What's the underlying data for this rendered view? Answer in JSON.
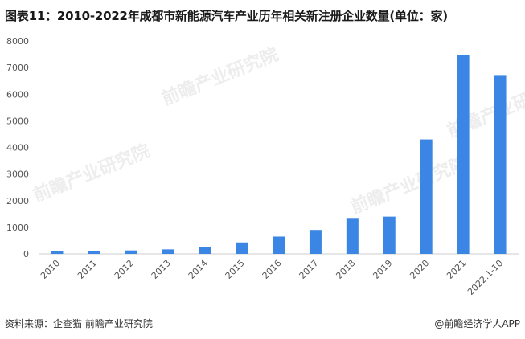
{
  "title": "图表11：2010-2022年成都市新能源汽车产业历年相关新注册企业数量(单位：家)",
  "source": "资料来源：企查猫 前瞻产业研究院",
  "credit": "@前瞻经济学人APP",
  "watermark": "前瞻产业研究院",
  "colors": {
    "bar": "#3b86e4",
    "axis": "#cccccc",
    "watermark": "#d9d9d9"
  },
  "chart_data": {
    "type": "bar",
    "title": "图表11：2010-2022年成都市新能源汽车产业历年相关新注册企业数量(单位：家)",
    "categories": [
      "2010",
      "2011",
      "2012",
      "2013",
      "2014",
      "2015",
      "2016",
      "2017",
      "2018",
      "2019",
      "2020",
      "2021",
      "2022.1-10"
    ],
    "values": [
      110,
      120,
      130,
      170,
      260,
      430,
      650,
      900,
      1350,
      1400,
      4300,
      7480,
      6720
    ],
    "yticks": [
      0,
      1000,
      2000,
      3000,
      4000,
      5000,
      6000,
      7000,
      8000
    ],
    "ylim": [
      0,
      8000
    ],
    "grid": false,
    "legend": "none"
  }
}
